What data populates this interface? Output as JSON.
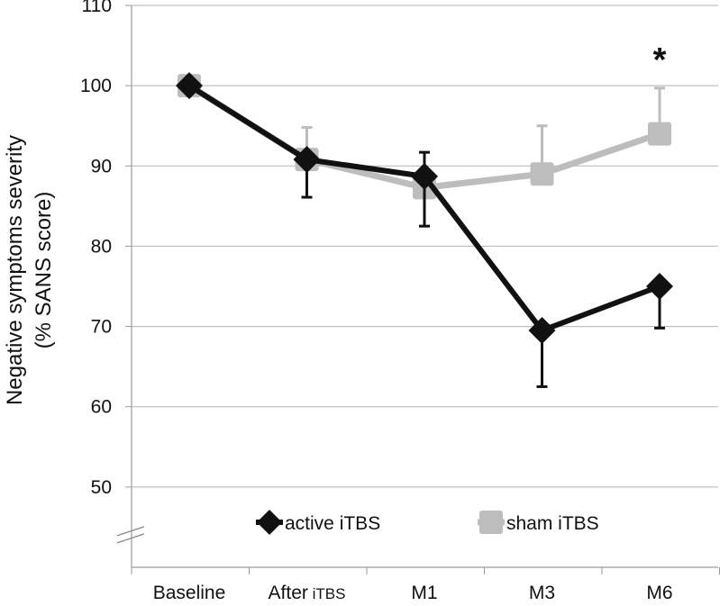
{
  "chart_data": {
    "type": "line",
    "title": "",
    "xlabel": "",
    "ylabel_line1": "Negative symptoms severity",
    "ylabel_line2": "(% SANS score)",
    "categories": [
      "Baseline",
      "After",
      "M1",
      "M3",
      "M6"
    ],
    "category_suffix": {
      "After": "iTBS"
    },
    "ylim": [
      40,
      110
    ],
    "yticks": [
      50,
      60,
      70,
      80,
      90,
      100,
      110
    ],
    "axis_break_below": 50,
    "grid": true,
    "legend_position": "bottom-center",
    "series": [
      {
        "name": "active iTBS",
        "color": "#111111",
        "marker": "diamond",
        "values": [
          100,
          90.8,
          88.7,
          69.5,
          75.0
        ],
        "error_plus": [
          0,
          0,
          3.0,
          0,
          0
        ],
        "error_minus": [
          0,
          4.7,
          6.2,
          7.0,
          5.2
        ]
      },
      {
        "name": "sham iTBS",
        "color": "#bdbdbd",
        "marker": "square",
        "values": [
          100,
          90.8,
          87.3,
          89.0,
          94.0
        ],
        "error_plus": [
          0,
          4.0,
          0,
          6.0,
          5.7
        ],
        "error_minus": [
          0,
          0,
          0,
          0,
          0
        ]
      }
    ],
    "annotations": [
      {
        "text": "*",
        "category": "M6",
        "y": 104.5
      }
    ]
  }
}
